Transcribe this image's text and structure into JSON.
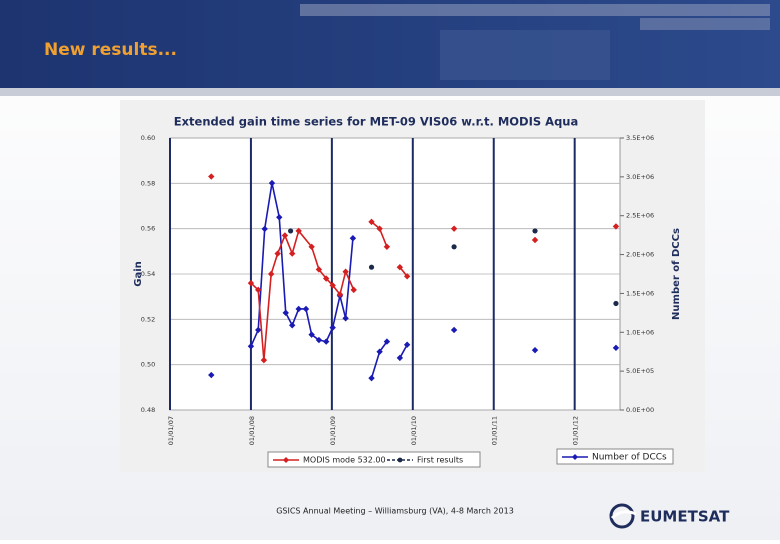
{
  "slide": {
    "heading": "New results...",
    "footer": "GSICS Annual Meeting – Williamsburg (VA), 4-8 March 2013",
    "logo": "EUMETSAT"
  },
  "chart_data": {
    "type": "line",
    "title": "Extended gain time series for MET-09 VIS06 w.r.t. MODIS Aqua",
    "y_label": "Gain",
    "y2_label": "Number of DCCs",
    "xlim": [
      2007,
      2012.56
    ],
    "xticks": [
      {
        "value": 2007,
        "label": "01/01/07"
      },
      {
        "value": 2008,
        "label": "01/01/08"
      },
      {
        "value": 2009,
        "label": "01/01/09"
      },
      {
        "value": 2010,
        "label": "01/01/10"
      },
      {
        "value": 2011,
        "label": "01/01/11"
      },
      {
        "value": 2012,
        "label": "01/01/12"
      }
    ],
    "ylim": [
      0.48,
      0.6
    ],
    "yticks": [
      {
        "value": 0.48,
        "label": "0.48"
      },
      {
        "value": 0.5,
        "label": "0.50"
      },
      {
        "value": 0.52,
        "label": "0.52"
      },
      {
        "value": 0.54,
        "label": "0.54"
      },
      {
        "value": 0.56,
        "label": "0.56"
      },
      {
        "value": 0.58,
        "label": "0.58"
      },
      {
        "value": 0.6,
        "label": "0.60"
      }
    ],
    "y2lim": [
      0,
      3500000
    ],
    "y2ticks": [
      {
        "value": 0,
        "label": "0.0E+00"
      },
      {
        "value": 500000,
        "label": "5.0E+05"
      },
      {
        "value": 1000000,
        "label": "1.0E+06"
      },
      {
        "value": 1500000,
        "label": "1.5E+06"
      },
      {
        "value": 2000000,
        "label": "2.0E+06"
      },
      {
        "value": 2500000,
        "label": "2.5E+06"
      },
      {
        "value": 3000000,
        "label": "3.0E+06"
      },
      {
        "value": 3500000,
        "label": "3.5E+06"
      }
    ],
    "grid": true,
    "series": [
      {
        "name": "Number of DCCs",
        "color": "#1a1ab4",
        "axis": "y2",
        "line": true,
        "marker": "diamond",
        "x": [
          2007.51,
          null,
          2008.0,
          2008.09,
          2008.17,
          2008.26,
          2008.35,
          2008.43,
          2008.51,
          2008.59,
          2008.68,
          2008.75,
          2008.84,
          2008.93,
          2009.01,
          2009.1,
          2009.17,
          2009.26,
          null,
          2009.49,
          2009.59,
          2009.68,
          null,
          2009.84,
          2009.93,
          null,
          2010.51,
          null,
          2011.51,
          null,
          2012.51
        ],
        "values": [
          450000,
          null,
          820000,
          1030000,
          2330000,
          2920000,
          2480000,
          1250000,
          1090000,
          1300000,
          1300000,
          970000,
          900000,
          880000,
          1060000,
          1470000,
          1180000,
          2210000,
          null,
          410000,
          750000,
          880000,
          null,
          670000,
          840000,
          null,
          1030000,
          null,
          770000,
          null,
          800000
        ]
      },
      {
        "name": "MODIS mode 532.00",
        "color": "#d42020",
        "axis": "y",
        "line": true,
        "marker": "diamond",
        "x": [
          2007.51,
          null,
          2008.0,
          2008.09,
          2008.16,
          2008.25,
          2008.33,
          2008.42,
          2008.51,
          2008.59,
          2008.75,
          2008.84,
          2008.93,
          2009.01,
          2009.1,
          2009.17,
          2009.27,
          null,
          2009.49,
          2009.59,
          2009.68,
          null,
          2009.84,
          2009.93,
          null,
          2010.51,
          null,
          2011.51,
          null,
          2012.51
        ],
        "values": [
          0.583,
          null,
          0.536,
          0.533,
          0.502,
          0.54,
          0.549,
          0.557,
          0.549,
          0.559,
          0.552,
          0.542,
          0.538,
          0.535,
          0.531,
          0.541,
          0.533,
          null,
          0.563,
          0.56,
          0.552,
          null,
          0.543,
          0.539,
          null,
          0.56,
          null,
          0.555,
          null,
          0.561
        ]
      },
      {
        "name": "First results",
        "color": "#1c2a4a",
        "axis": "y",
        "line": false,
        "marker": "circle",
        "x": [
          2008.49,
          2009.49,
          2010.51,
          2011.51,
          2012.51
        ],
        "values": [
          0.559,
          0.543,
          0.552,
          0.559,
          0.527
        ]
      }
    ]
  }
}
